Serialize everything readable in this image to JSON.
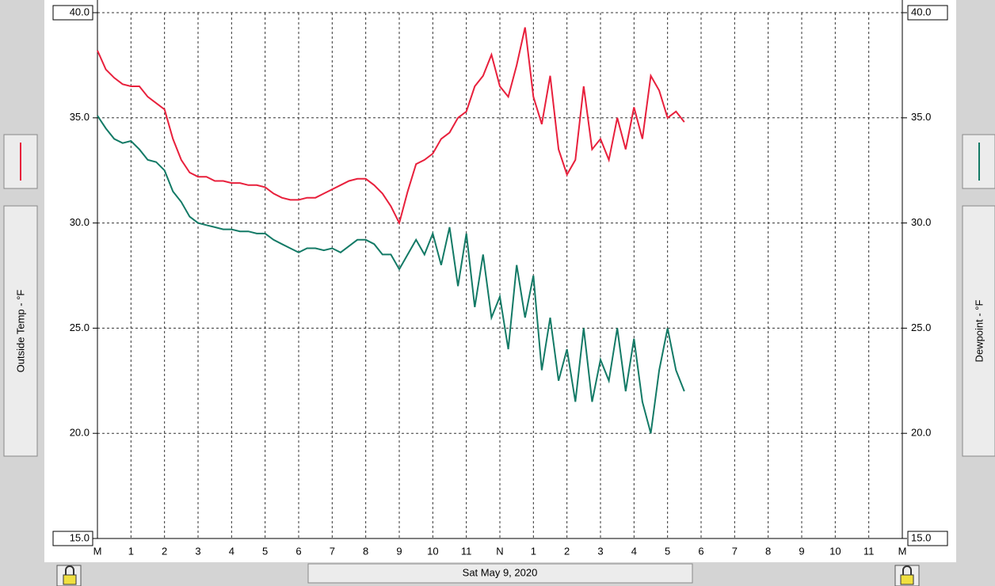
{
  "chart_data": {
    "type": "line",
    "subtitle": "Sat May 9, 2020",
    "x": [
      0,
      0.25,
      0.5,
      0.75,
      1,
      1.25,
      1.5,
      1.75,
      2,
      2.25,
      2.5,
      2.75,
      3,
      3.25,
      3.5,
      3.75,
      4,
      4.25,
      4.5,
      4.75,
      5,
      5.25,
      5.5,
      5.75,
      6,
      6.25,
      6.5,
      6.75,
      7,
      7.25,
      7.5,
      7.75,
      8,
      8.25,
      8.5,
      8.75,
      9,
      9.25,
      9.5,
      9.75,
      10,
      10.25,
      10.5,
      10.75,
      11,
      11.25,
      11.5,
      11.75,
      12,
      12.25,
      12.5,
      12.75,
      13,
      13.25,
      13.5,
      13.75,
      14,
      14.25,
      14.5,
      14.75,
      15,
      15.25,
      15.5,
      15.75,
      16,
      16.25,
      16.5,
      16.75,
      17,
      17.25,
      17.5
    ],
    "series": [
      {
        "name": "Outside Temp - °F",
        "color": "#e8203c",
        "values": [
          38.2,
          37.3,
          36.9,
          36.6,
          36.5,
          36.5,
          36.0,
          35.7,
          35.4,
          34.0,
          33.0,
          32.4,
          32.2,
          32.2,
          32.0,
          32.0,
          31.9,
          31.9,
          31.8,
          31.8,
          31.7,
          31.4,
          31.2,
          31.1,
          31.1,
          31.2,
          31.2,
          31.4,
          31.6,
          31.8,
          32.0,
          32.1,
          32.1,
          31.8,
          31.4,
          30.8,
          30.0,
          31.5,
          32.8,
          33.0,
          33.3,
          34.0,
          34.3,
          35.0,
          35.3,
          36.5,
          37.0,
          38.0,
          36.5,
          36.0,
          37.5,
          39.3,
          36.0,
          34.7,
          37.0,
          33.5,
          32.3,
          33.0,
          36.5,
          33.5,
          34.0,
          33.0,
          35.0,
          33.5,
          35.5,
          34.0,
          37.0,
          36.3,
          35.0,
          35.3,
          34.8
        ]
      },
      {
        "name": "Dewpoint - °F",
        "color": "#137a66",
        "axis": "y2",
        "values": [
          35.1,
          34.5,
          34.0,
          33.8,
          33.9,
          33.5,
          33.0,
          32.9,
          32.5,
          31.5,
          31.0,
          30.3,
          30.0,
          29.9,
          29.8,
          29.7,
          29.7,
          29.6,
          29.6,
          29.5,
          29.5,
          29.2,
          29.0,
          28.8,
          28.6,
          28.8,
          28.8,
          28.7,
          28.8,
          28.6,
          28.9,
          29.2,
          29.2,
          29.0,
          28.5,
          28.5,
          27.8,
          28.5,
          29.2,
          28.5,
          29.5,
          28.0,
          29.8,
          27.0,
          29.5,
          26.0,
          28.5,
          25.5,
          26.5,
          24.0,
          28.0,
          25.5,
          27.5,
          23.0,
          25.5,
          22.5,
          24.0,
          21.5,
          25.0,
          21.5,
          23.5,
          22.5,
          25.0,
          22.0,
          24.5,
          21.5,
          20.0,
          23.0,
          25.0,
          23.0,
          22.0
        ]
      }
    ],
    "xlim": [
      0,
      24
    ],
    "xticks": [
      {
        "value": 0,
        "label": "M"
      },
      1,
      2,
      3,
      4,
      5,
      6,
      7,
      8,
      9,
      10,
      11,
      {
        "value": 12,
        "label": "N"
      },
      {
        "value": 13,
        "label": "1"
      },
      {
        "value": 14,
        "label": "2"
      },
      {
        "value": 15,
        "label": "3"
      },
      {
        "value": 16,
        "label": "4"
      },
      {
        "value": 17,
        "label": "5"
      },
      {
        "value": 18,
        "label": "6"
      },
      {
        "value": 19,
        "label": "7"
      },
      {
        "value": 20,
        "label": "8"
      },
      {
        "value": 21,
        "label": "9"
      },
      {
        "value": 22,
        "label": "10"
      },
      {
        "value": 23,
        "label": "11"
      },
      {
        "value": 24,
        "label": "M"
      }
    ],
    "ylim": [
      15,
      40
    ],
    "yticks": [
      {
        "value": 15,
        "label": "15.0"
      },
      {
        "value": 20,
        "label": "20.0"
      },
      {
        "value": 25,
        "label": "25.0"
      },
      {
        "value": 30,
        "label": "30.0"
      },
      {
        "value": 35,
        "label": "35.0"
      },
      {
        "value": 40,
        "label": "40.0"
      }
    ],
    "y2lim": [
      15,
      40
    ],
    "y2ticks": [
      {
        "value": 15,
        "label": "15.0"
      },
      {
        "value": 20,
        "label": "20.0"
      },
      {
        "value": 25,
        "label": "25.0"
      },
      {
        "value": 30,
        "label": "30.0"
      },
      {
        "value": 35,
        "label": "35.0"
      },
      {
        "value": 40,
        "label": "40.0"
      }
    ],
    "grid": true
  }
}
